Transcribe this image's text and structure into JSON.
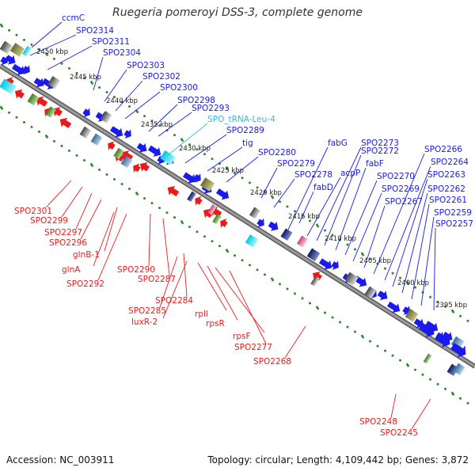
{
  "title": "Ruegeria pomeroyi DSS-3, complete genome",
  "footer": {
    "accession": "Accession: NC_003911",
    "summary": "Topology: circular; Length: 4,109,442 bp; Genes: 3,872"
  },
  "colors": {
    "backbone": "#888888",
    "forward": "#1a1aee",
    "reverse": "#ee1a1a",
    "trna": "#33bbdd",
    "tick": "#2a8a2a"
  },
  "scale_labels": [
    "2450 kbp",
    "2445 kbp",
    "2440 kbp",
    "2435 kbp",
    "2430 kbp",
    "2425 kbp",
    "2420 kbp",
    "2415 kbp",
    "2410 kbp",
    "2405 kbp",
    "2400 kbp",
    "2395 kbp"
  ],
  "top_genes": [
    {
      "label": "ccmC",
      "color": "#1a1aee"
    },
    {
      "label": "SPO2314",
      "color": "#1a1aee"
    },
    {
      "label": "SPO2311",
      "color": "#1a1aee"
    },
    {
      "label": "SPO2304",
      "color": "#1a1aee"
    },
    {
      "label": "SPO2303",
      "color": "#1a1aee"
    },
    {
      "label": "SPO2302",
      "color": "#1a1aee"
    },
    {
      "label": "SPO2300",
      "color": "#1a1aee"
    },
    {
      "label": "SPO2298",
      "color": "#1a1aee"
    },
    {
      "label": "SPO2293",
      "color": "#1a1aee"
    },
    {
      "label": "SPO_tRNA-Leu-4",
      "color": "#33bbdd"
    },
    {
      "label": "SPO2289",
      "color": "#1a1aee"
    },
    {
      "label": "tig",
      "color": "#1a1aee"
    },
    {
      "label": "SPO2280",
      "color": "#1a1aee"
    },
    {
      "label": "SPO2279",
      "color": "#1a1aee"
    },
    {
      "label": "SPO2278",
      "color": "#1a1aee"
    },
    {
      "label": "fabD",
      "color": "#1a1aee"
    },
    {
      "label": "fabG",
      "color": "#1a1aee"
    },
    {
      "label": "acpP",
      "color": "#1a1aee"
    },
    {
      "label": "SPO2273",
      "color": "#1a1aee"
    },
    {
      "label": "SPO2272",
      "color": "#1a1aee"
    },
    {
      "label": "fabF",
      "color": "#1a1aee"
    },
    {
      "label": "SPO2270",
      "color": "#1a1aee"
    },
    {
      "label": "SPO2269",
      "color": "#1a1aee"
    },
    {
      "label": "SPO2267",
      "color": "#1a1aee"
    },
    {
      "label": "SPO2266",
      "color": "#1a1aee"
    },
    {
      "label": "SPO2264",
      "color": "#1a1aee"
    },
    {
      "label": "SPO2263",
      "color": "#1a1aee"
    },
    {
      "label": "SPO2262",
      "color": "#1a1aee"
    },
    {
      "label": "SPO2261",
      "color": "#1a1aee"
    },
    {
      "label": "SPO2259",
      "color": "#1a1aee"
    },
    {
      "label": "SPO2257",
      "color": "#1a1aee"
    }
  ],
  "bottom_genes": [
    {
      "label": "SPO2301",
      "color": "#ee1a1a"
    },
    {
      "label": "SPO2299",
      "color": "#ee1a1a"
    },
    {
      "label": "SPO2297",
      "color": "#ee1a1a"
    },
    {
      "label": "SPO2296",
      "color": "#ee1a1a"
    },
    {
      "label": "glnB-1",
      "color": "#ee1a1a"
    },
    {
      "label": "glnA",
      "color": "#ee1a1a"
    },
    {
      "label": "SPO2292",
      "color": "#ee1a1a"
    },
    {
      "label": "SPO2290",
      "color": "#ee1a1a"
    },
    {
      "label": "SPO2287",
      "color": "#ee1a1a"
    },
    {
      "label": "SPO2284",
      "color": "#ee1a1a"
    },
    {
      "label": "SPO2285",
      "color": "#ee1a1a"
    },
    {
      "label": "luxR-2",
      "color": "#ee1a1a"
    },
    {
      "label": "rplI",
      "color": "#ee1a1a"
    },
    {
      "label": "rpsR",
      "color": "#ee1a1a"
    },
    {
      "label": "rpsF",
      "color": "#ee1a1a"
    },
    {
      "label": "SPO2277",
      "color": "#ee1a1a"
    },
    {
      "label": "SPO2268",
      "color": "#ee1a1a"
    },
    {
      "label": "SPO2248",
      "color": "#ee1a1a"
    },
    {
      "label": "SPO2245",
      "color": "#ee1a1a"
    }
  ]
}
